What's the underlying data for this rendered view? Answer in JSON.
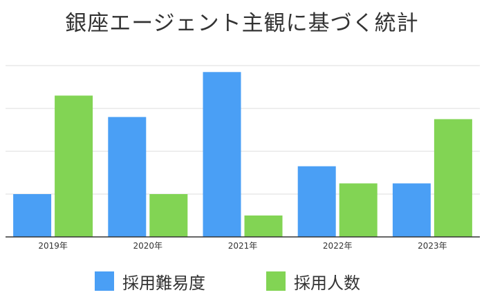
{
  "chart_data": {
    "type": "bar",
    "title": "銀座エージェント主観に基づく統計",
    "categories": [
      "2019年",
      "2020年",
      "2021年",
      "2022年",
      "2023年"
    ],
    "series": [
      {
        "name": "採用難易度",
        "color": "#4a9ff5",
        "values": [
          1.0,
          2.8,
          3.85,
          1.65,
          1.25
        ]
      },
      {
        "name": "採用人数",
        "color": "#82d454",
        "values": [
          3.3,
          1.0,
          0.5,
          1.25,
          2.75
        ]
      }
    ],
    "ylim": [
      0,
      4
    ],
    "grid": true,
    "legend_position": "bottom",
    "xlabel": "",
    "ylabel": ""
  }
}
